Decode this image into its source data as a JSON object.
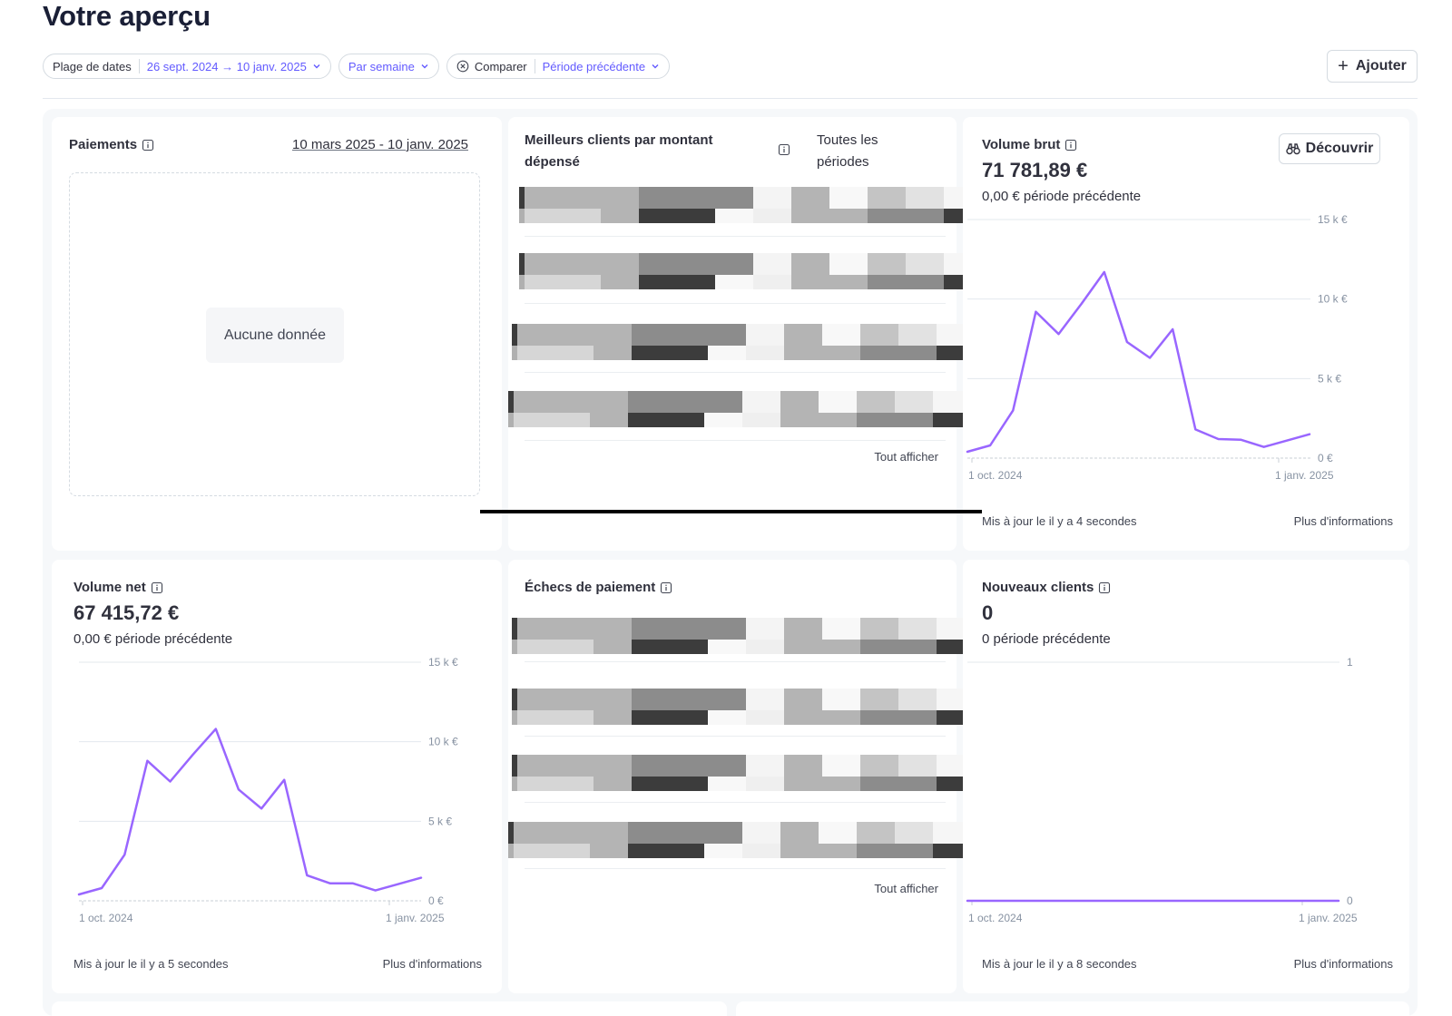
{
  "page": {
    "title": "Votre aperçu"
  },
  "filters": {
    "date_range_label": "Plage de dates",
    "date_range_value": "26 sept. 2024 → 10 janv. 2025",
    "interval_value": "Par semaine",
    "compare_label": "Comparer",
    "compare_value": "Période précédente",
    "add_label": "Ajouter"
  },
  "colors": {
    "accent": "#635bff",
    "series": "#9966ff",
    "border": "#d5dbe1"
  },
  "cards": {
    "payments": {
      "title": "Paiements",
      "date_link": "10 mars 2025 - 10 janv. 2025",
      "empty": "Aucune donnée"
    },
    "top_customers": {
      "title": "Meilleurs clients par montant dépensé",
      "period": "Toutes les périodes",
      "view_all": "Tout afficher"
    },
    "gross_volume": {
      "title": "Volume brut",
      "discover": "Découvrir",
      "value": "71 781,89 €",
      "previous": "0,00 € période précédente",
      "updated": "Mis à jour le il y a 4 secondes",
      "more": "Plus d'informations"
    },
    "net_volume": {
      "title": "Volume net",
      "value": "67 415,72 €",
      "previous": "0,00 € période précédente",
      "updated": "Mis à jour le il y a 5 secondes",
      "more": "Plus d'informations"
    },
    "payment_failures": {
      "title": "Échecs de paiement",
      "view_all": "Tout afficher"
    },
    "new_customers": {
      "title": "Nouveaux clients",
      "value": "0",
      "previous": "0 période précédente",
      "updated": "Mis à jour le il y a 8 secondes",
      "more": "Plus d'informations"
    }
  },
  "chart_data": [
    {
      "type": "line",
      "title": "Volume brut",
      "x_ticks": [
        "1 oct. 2024",
        "1 janv. 2025"
      ],
      "y_ticks": [
        "15 k €",
        "10 k €",
        "5 k €",
        "0 €"
      ],
      "ylim": [
        0,
        15000
      ],
      "values": [
        400,
        800,
        3000,
        9200,
        7800,
        9700,
        11700,
        7300,
        6300,
        8100,
        1800,
        1200,
        1150,
        700,
        1100,
        1500
      ],
      "grid": true
    },
    {
      "type": "line",
      "title": "Volume net",
      "x_ticks": [
        "1 oct. 2024",
        "1 janv. 2025"
      ],
      "y_ticks": [
        "15 k €",
        "10 k €",
        "5 k €",
        "0 €"
      ],
      "ylim": [
        0,
        15000
      ],
      "values": [
        400,
        800,
        2900,
        8800,
        7500,
        9200,
        10800,
        7000,
        5800,
        7600,
        1600,
        1100,
        1100,
        650,
        1050,
        1450
      ],
      "grid": true
    },
    {
      "type": "line",
      "title": "Nouveaux clients",
      "x_ticks": [
        "1 oct. 2024",
        "1 janv. 2025"
      ],
      "y_ticks": [
        "1",
        "0"
      ],
      "ylim": [
        0,
        1
      ],
      "values": [
        0,
        0,
        0,
        0,
        0,
        0,
        0,
        0,
        0,
        0,
        0,
        0,
        0,
        0,
        0,
        0
      ],
      "grid": true
    }
  ]
}
